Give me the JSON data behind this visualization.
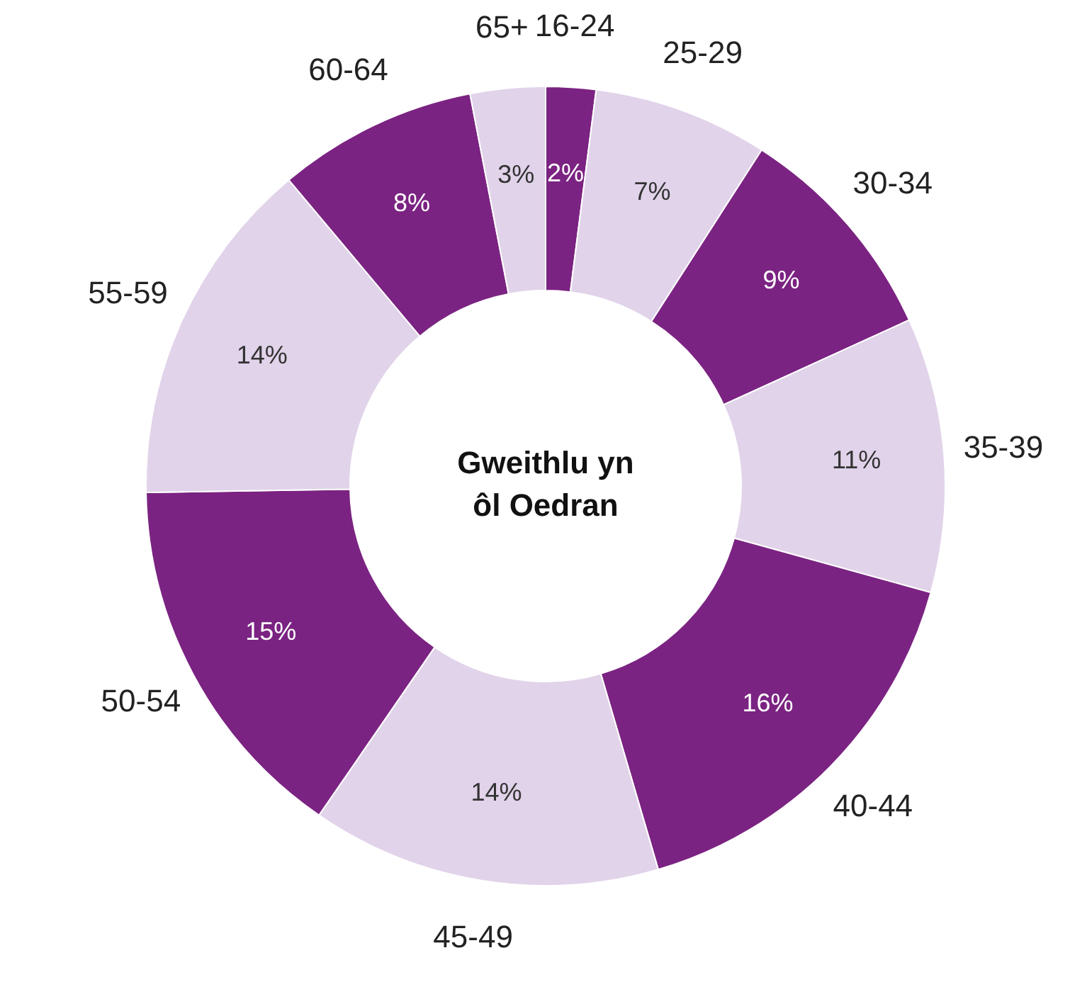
{
  "chart_data": {
    "type": "donut",
    "title": "Gweithlu yn ôl Oedran",
    "categories": [
      "16-24",
      "25-29",
      "30-34",
      "35-39",
      "40-44",
      "45-49",
      "50-54",
      "55-59",
      "60-64",
      "65+"
    ],
    "values": [
      2,
      7,
      9,
      11,
      16,
      14,
      15,
      14,
      8,
      3
    ],
    "value_labels": [
      "2%",
      "7%",
      "9%",
      "11%",
      "16%",
      "14%",
      "15%",
      "14%",
      "8%",
      "3%"
    ],
    "colors": [
      "#7b2382",
      "#e1d3ea",
      "#7b2382",
      "#e1d3ea",
      "#7b2382",
      "#e1d3ea",
      "#7b2382",
      "#e1d3ea",
      "#7b2382",
      "#e1d3ea"
    ]
  }
}
